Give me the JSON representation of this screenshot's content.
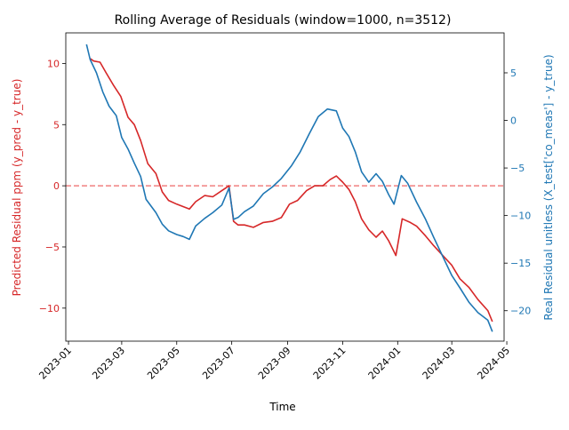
{
  "chart_data": {
    "type": "line",
    "title": "Rolling Average of Residuals (window=1000, n=3512)",
    "xlabel": "Time",
    "ylabel_left": "Predicted Residual ppm (y_pred - y_true)",
    "ylabel_right": "Real Residual unitless (X_test['co_meas'] - y_true)",
    "x_range": [
      "2022-12-29",
      "2024-04-28"
    ],
    "x_ticks": [
      "2023-01",
      "2023-03",
      "2023-05",
      "2023-07",
      "2023-09",
      "2023-11",
      "2024-01",
      "2024-03",
      "2024-05"
    ],
    "ylim_left": [
      -12.7,
      12.5
    ],
    "ylim_right": [
      -23.2,
      9.2
    ],
    "yticks_left": [
      -10,
      -5,
      0,
      5,
      10
    ],
    "yticks_right": [
      -20,
      -15,
      -10,
      -5,
      0,
      5
    ],
    "hline_left": 0,
    "colors": {
      "left": "#d62728",
      "right": "#1f77b4",
      "hline": "#f08080"
    },
    "series": [
      {
        "axis": "left",
        "color": "#d62728",
        "x": [
          "2023-01-25",
          "2023-01-29",
          "2023-02-05",
          "2023-02-12",
          "2023-02-20",
          "2023-02-28",
          "2023-03-08",
          "2023-03-15",
          "2023-03-22",
          "2023-03-30",
          "2023-04-08",
          "2023-04-15",
          "2023-04-22",
          "2023-05-01",
          "2023-05-08",
          "2023-05-15",
          "2023-05-22",
          "2023-06-01",
          "2023-06-10",
          "2023-06-20",
          "2023-06-28",
          "2023-07-03",
          "2023-07-08",
          "2023-07-15",
          "2023-07-25",
          "2023-08-05",
          "2023-08-15",
          "2023-08-25",
          "2023-09-03",
          "2023-09-12",
          "2023-09-22",
          "2023-10-01",
          "2023-10-10",
          "2023-10-18",
          "2023-10-25",
          "2023-11-01",
          "2023-11-08",
          "2023-11-15",
          "2023-11-22",
          "2023-11-30",
          "2023-12-08",
          "2023-12-15",
          "2023-12-22",
          "2023-12-30",
          "2024-01-06",
          "2024-01-15",
          "2024-01-22",
          "2024-02-01",
          "2024-02-10",
          "2024-02-20",
          "2024-03-01",
          "2024-03-10",
          "2024-03-20",
          "2024-03-30",
          "2024-04-10",
          "2024-04-15"
        ],
        "y": [
          10.4,
          10.2,
          10.1,
          9.2,
          8.2,
          7.3,
          5.6,
          5.0,
          3.7,
          1.8,
          1.0,
          -0.5,
          -1.2,
          -1.5,
          -1.7,
          -1.9,
          -1.3,
          -0.8,
          -0.9,
          -0.4,
          0.0,
          -2.9,
          -3.2,
          -3.2,
          -3.4,
          -3.0,
          -2.9,
          -2.6,
          -1.5,
          -1.2,
          -0.4,
          0.0,
          0.0,
          0.5,
          0.8,
          0.3,
          -0.3,
          -1.3,
          -2.7,
          -3.6,
          -4.2,
          -3.7,
          -4.5,
          -5.7,
          -2.7,
          -3.0,
          -3.3,
          -4.1,
          -4.9,
          -5.7,
          -6.5,
          -7.6,
          -8.3,
          -9.3,
          -10.2,
          -11.1
        ]
      },
      {
        "axis": "right",
        "color": "#1f77b4",
        "x": [
          "2023-01-21",
          "2023-01-25",
          "2023-02-01",
          "2023-02-08",
          "2023-02-15",
          "2023-02-23",
          "2023-03-01",
          "2023-03-08",
          "2023-03-15",
          "2023-03-22",
          "2023-03-28",
          "2023-04-08",
          "2023-04-15",
          "2023-04-22",
          "2023-05-01",
          "2023-05-08",
          "2023-05-15",
          "2023-05-22",
          "2023-06-01",
          "2023-06-10",
          "2023-06-20",
          "2023-06-28",
          "2023-07-03",
          "2023-07-08",
          "2023-07-15",
          "2023-07-25",
          "2023-08-05",
          "2023-08-15",
          "2023-08-25",
          "2023-09-05",
          "2023-09-15",
          "2023-09-25",
          "2023-10-05",
          "2023-10-15",
          "2023-10-25",
          "2023-11-01",
          "2023-11-08",
          "2023-11-15",
          "2023-11-22",
          "2023-11-30",
          "2023-12-08",
          "2023-12-15",
          "2023-12-22",
          "2023-12-28",
          "2024-01-05",
          "2024-01-12",
          "2024-01-22",
          "2024-02-01",
          "2024-02-10",
          "2024-02-20",
          "2024-03-01",
          "2024-03-10",
          "2024-03-20",
          "2024-03-30",
          "2024-04-10",
          "2024-04-15"
        ],
        "y": [
          8.0,
          6.4,
          5.0,
          3.0,
          1.5,
          0.5,
          -1.8,
          -3.0,
          -4.5,
          -5.9,
          -8.3,
          -9.7,
          -10.9,
          -11.6,
          -12.0,
          -12.2,
          -12.5,
          -11.1,
          -10.3,
          -9.7,
          -8.9,
          -7.1,
          -10.4,
          -10.2,
          -9.6,
          -9.0,
          -7.7,
          -7.0,
          -6.1,
          -4.8,
          -3.3,
          -1.4,
          0.4,
          1.2,
          1.0,
          -0.8,
          -1.7,
          -3.3,
          -5.4,
          -6.5,
          -5.6,
          -6.4,
          -7.8,
          -8.8,
          -5.8,
          -6.6,
          -8.6,
          -10.4,
          -12.3,
          -14.3,
          -16.3,
          -17.6,
          -19.1,
          -20.2,
          -21.0,
          -22.2
        ]
      }
    ]
  }
}
